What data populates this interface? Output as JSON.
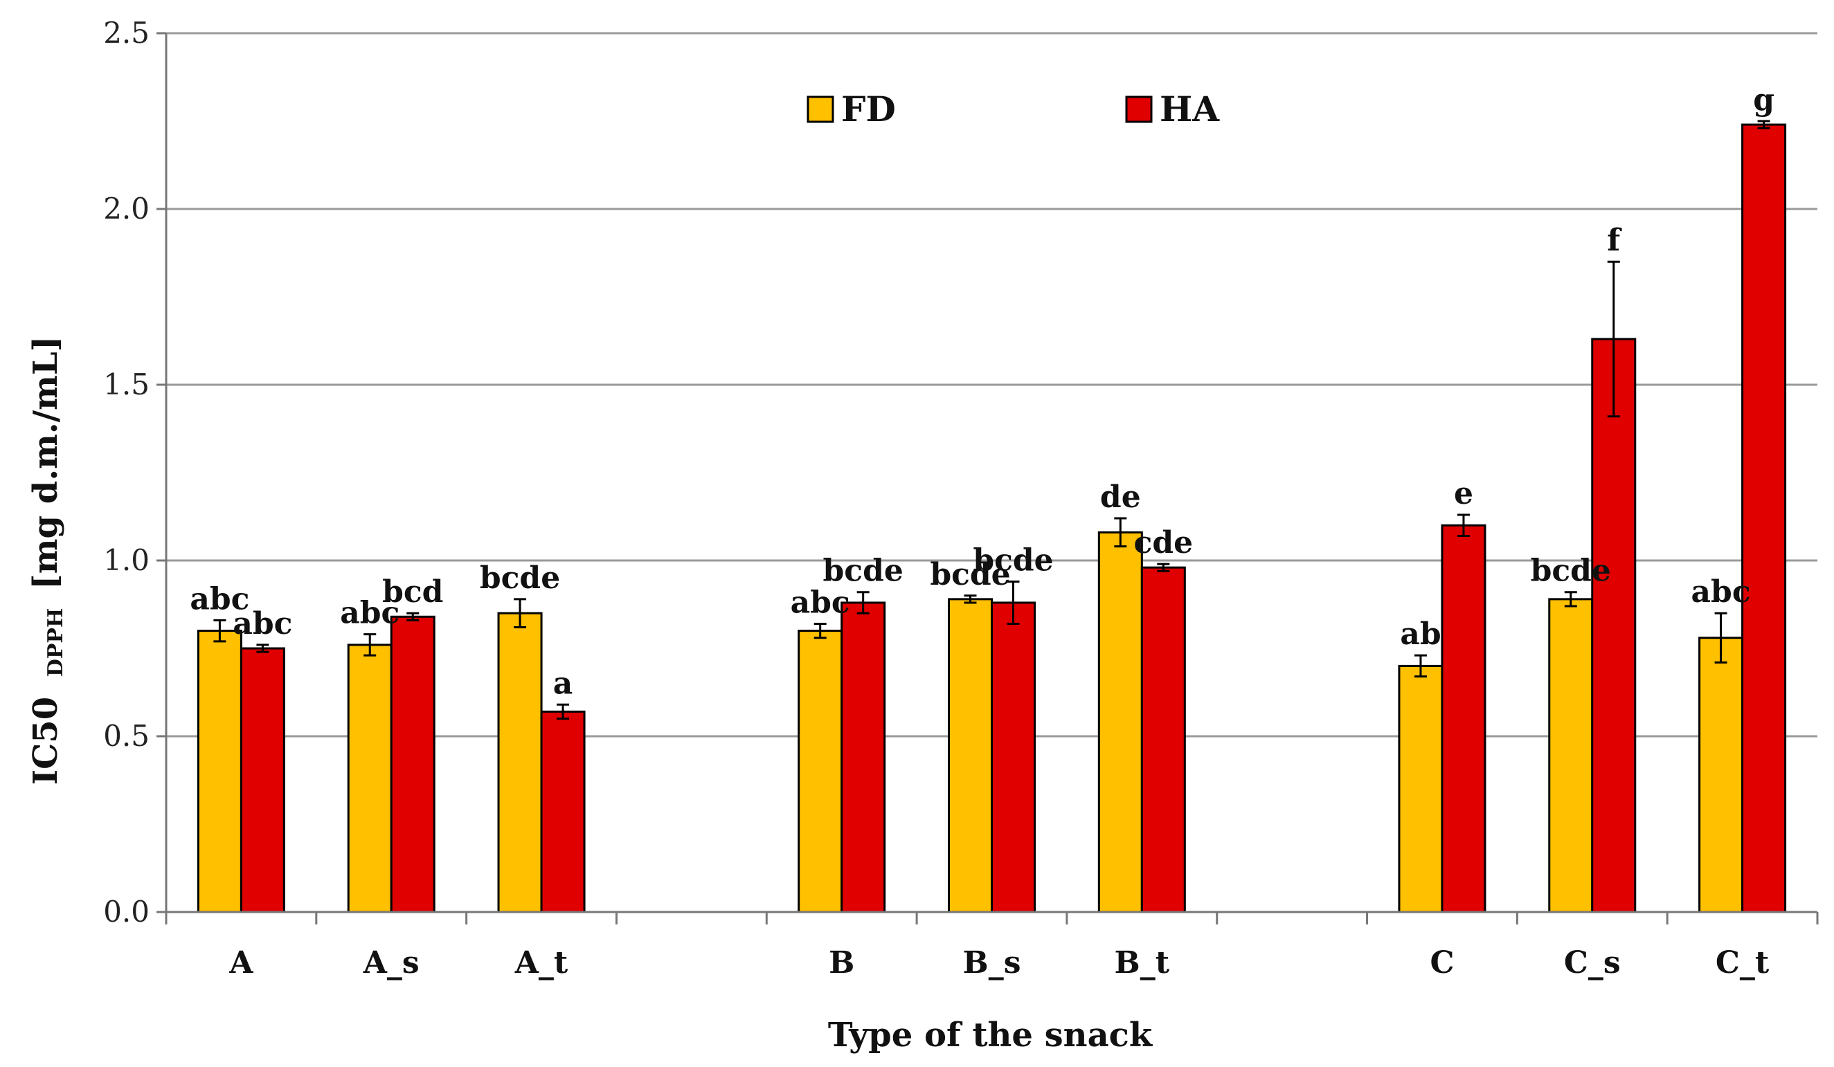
{
  "chart_data": {
    "type": "bar",
    "title": "",
    "xlabel": "Type of the snack",
    "ylabel_main": "IC50",
    "ylabel_sub": "DPPH",
    "ylabel_unit": "[mg d.m./mL]",
    "ylim": [
      0,
      2.5
    ],
    "yticks": [
      "0.0",
      "0.5",
      "1.0",
      "1.5",
      "2.0",
      "2.5"
    ],
    "grid": true,
    "legend_position": "top-center",
    "categories": [
      "A",
      "A_s",
      "A_t",
      "",
      "B",
      "B_s",
      "B_t",
      "",
      "C",
      "C_s",
      "C_t"
    ],
    "series": [
      {
        "name": "FD",
        "color": "#FFC000",
        "values": [
          0.8,
          0.76,
          0.85,
          null,
          0.8,
          0.89,
          1.08,
          null,
          0.7,
          0.89,
          0.78
        ],
        "errors": [
          0.03,
          0.03,
          0.04,
          null,
          0.02,
          0.01,
          0.04,
          null,
          0.03,
          0.02,
          0.07
        ],
        "labels": [
          "abc",
          "abc",
          "bcde",
          "",
          "abc",
          "bcde",
          "de",
          "",
          "ab",
          "bcde",
          "abc"
        ]
      },
      {
        "name": "HA",
        "color": "#E00000",
        "values": [
          0.75,
          0.84,
          0.57,
          null,
          0.88,
          0.88,
          0.98,
          null,
          1.1,
          1.63,
          2.24
        ],
        "errors": [
          0.01,
          0.01,
          0.02,
          null,
          0.03,
          0.06,
          0.01,
          null,
          0.03,
          0.22,
          0.01
        ],
        "labels": [
          "abc",
          "bcd",
          "a",
          "",
          "bcde",
          "bcde",
          "cde",
          "",
          "e",
          "f",
          "g"
        ]
      }
    ]
  }
}
